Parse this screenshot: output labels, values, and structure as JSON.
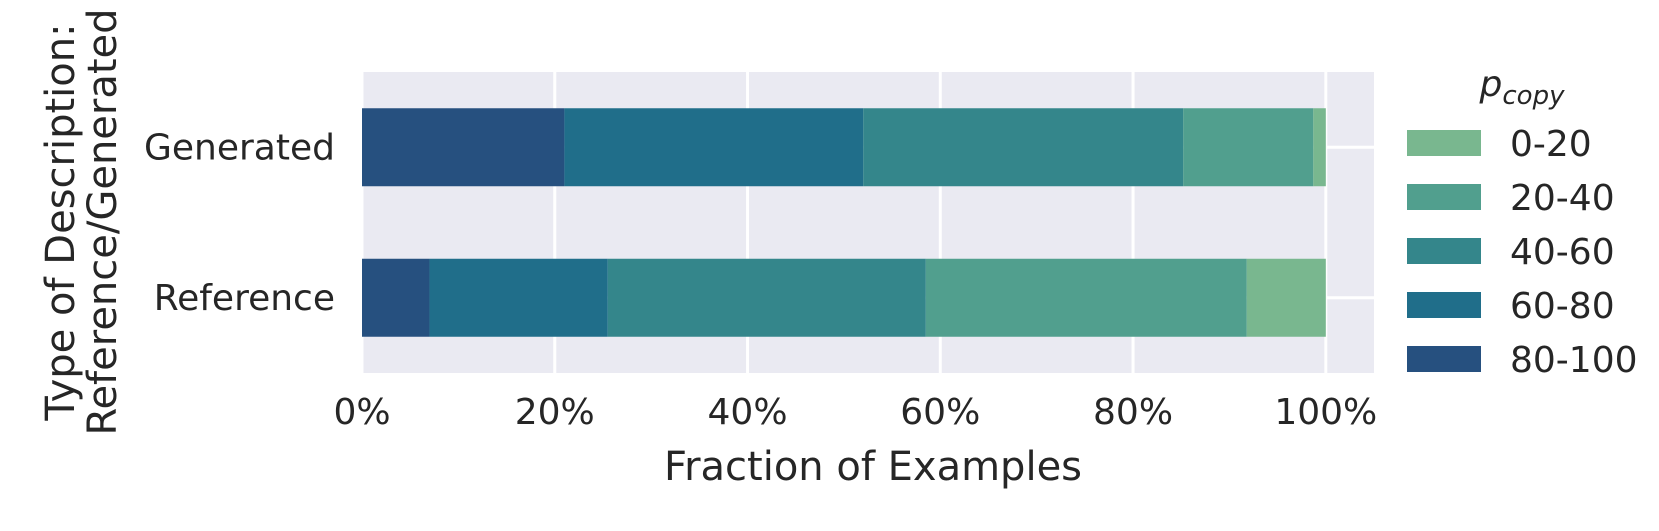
{
  "chart_data": {
    "type": "bar",
    "orientation": "horizontal",
    "stacked": true,
    "title": "",
    "xlabel": "Fraction of Examples",
    "ylabel_lines": [
      "Type of Description:",
      "Reference/Generated"
    ],
    "categories": [
      "Generated",
      "Reference"
    ],
    "xlim": [
      0,
      105
    ],
    "x_ticks": [
      0,
      20,
      40,
      60,
      80,
      100
    ],
    "x_tick_labels": [
      "0%",
      "20%",
      "40%",
      "60%",
      "80%",
      "100%"
    ],
    "grid": true,
    "legend": {
      "placement": "right",
      "title_base": "p",
      "title_sub": "copy",
      "order": [
        "0-20",
        "20-40",
        "40-60",
        "60-80",
        "80-100"
      ]
    },
    "series": [
      {
        "name": "80-100",
        "color": "#26507f",
        "values": [
          21.0,
          7.0
        ]
      },
      {
        "name": "60-80",
        "color": "#206e8a",
        "values": [
          31.0,
          18.5
        ]
      },
      {
        "name": "40-60",
        "color": "#34868b",
        "values": [
          33.2,
          33.0
        ]
      },
      {
        "name": "20-40",
        "color": "#519f8e",
        "values": [
          13.5,
          33.3
        ]
      },
      {
        "name": "0-20",
        "color": "#79b78f",
        "values": [
          1.3,
          8.2
        ]
      }
    ],
    "colors": {
      "plot_background": "#eaeaf2",
      "grid": "#ffffff",
      "text": "#262626"
    }
  }
}
